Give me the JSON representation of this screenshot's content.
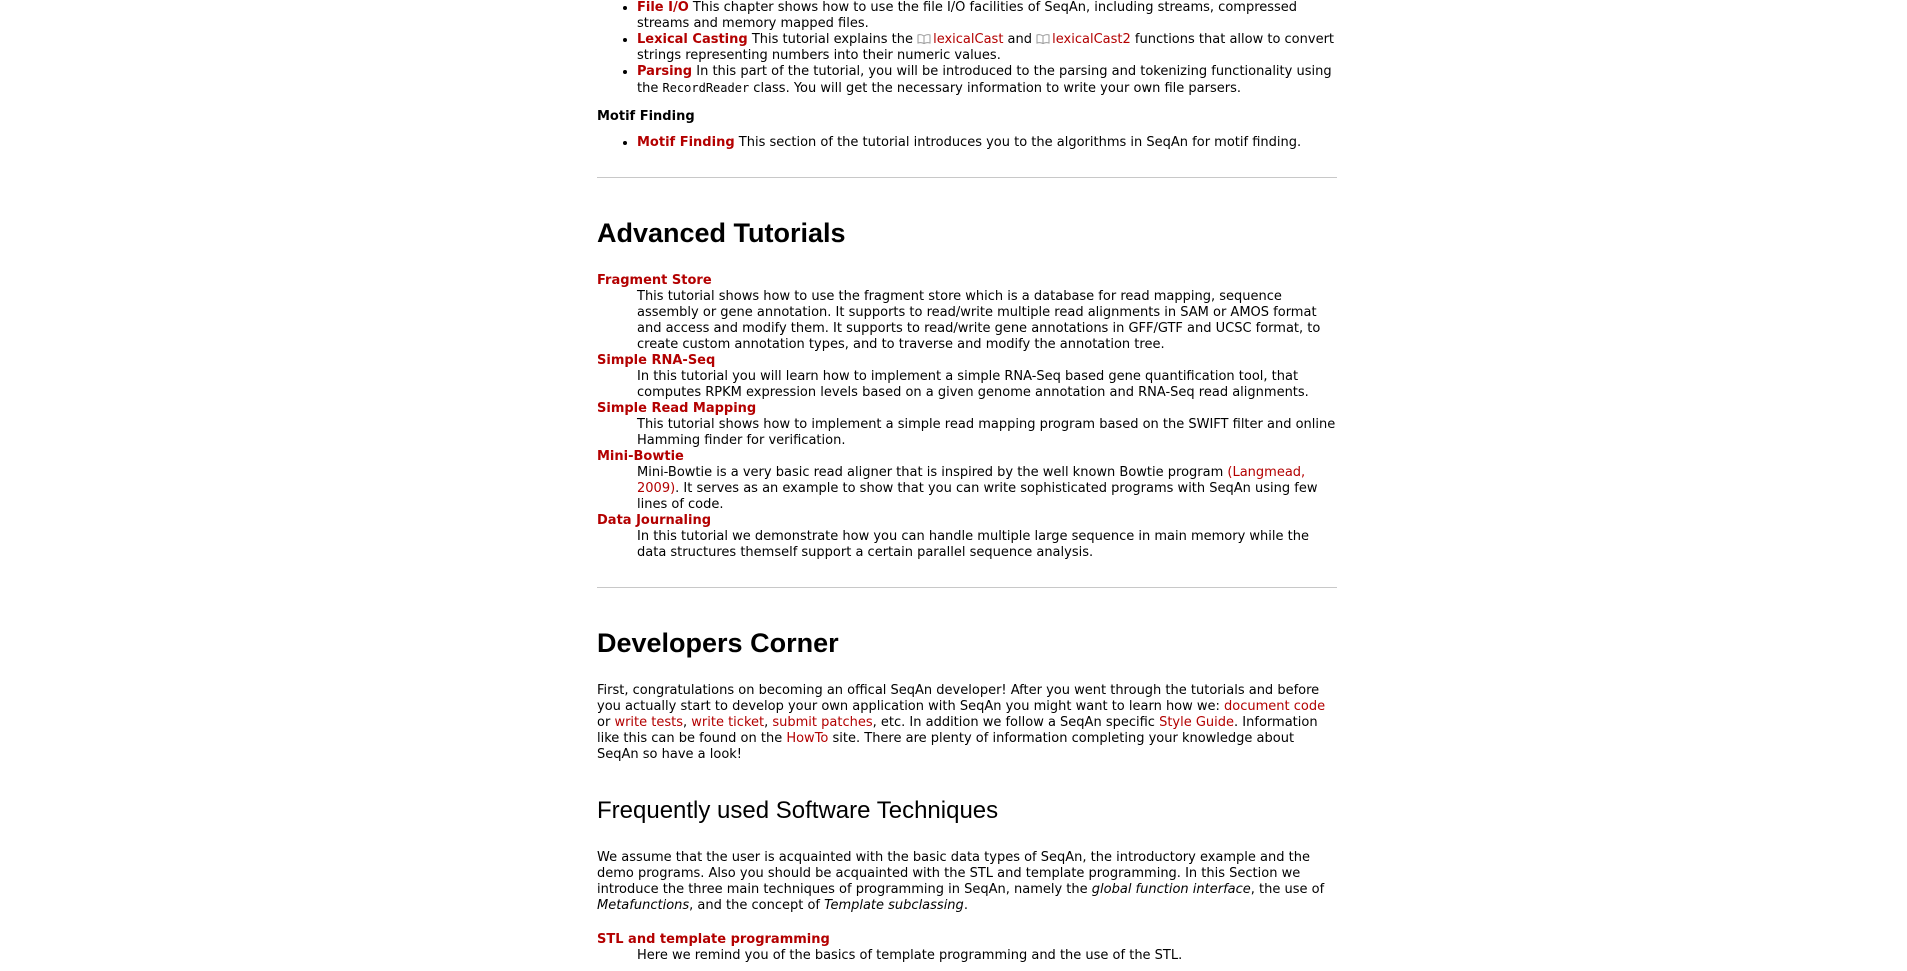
{
  "intro_list": [
    {
      "title": "File I/O",
      "text": " This chapter shows how to use the file I/O facilities of SeqAn, including streams, compressed streams and memory mapped files."
    },
    {
      "title": "Lexical Casting",
      "pre": " This tutorial explains the ",
      "link1": "lexicalCast",
      "mid": " and ",
      "link2": "lexicalCast2",
      "post": " functions that allow to convert strings representing numbers into their numeric values."
    },
    {
      "title": "Parsing",
      "pre": " In this part of the tutorial, you will be introduced to the parsing and tokenizing functionality using the ",
      "code": "RecordReader",
      "post": " class. You will get the necessary information to write your own file parsers."
    }
  ],
  "motif": {
    "heading": "Motif Finding",
    "item_title": "Motif Finding",
    "item_text": " This section of the tutorial introduces you to the algorithms in SeqAn for motif finding."
  },
  "advanced": {
    "heading": "Advanced Tutorials",
    "items": [
      {
        "title": "Fragment Store",
        "text": "This tutorial shows how to use the fragment store which is a database for read mapping, sequence assembly or gene annotation. It supports to read/write multiple read alignments in SAM or AMOS format and access and modify them. It supports to read/write gene annotations in GFF/GTF and UCSC format, to create custom annotation types, and to traverse and modify the annotation tree."
      },
      {
        "title": "Simple RNA-Seq",
        "text": "In this tutorial you will learn how to implement a simple RNA-Seq based gene quantification tool, that computes RPKM expression levels based on a given genome annotation and RNA-Seq read alignments."
      },
      {
        "title": "Simple Read Mapping",
        "text": "This tutorial shows how to implement a simple read mapping program based on the SWIFT filter and online Hamming finder for verification."
      },
      {
        "title": "Mini-Bowtie",
        "pre": "Mini-Bowtie is a very basic read aligner that is inspired by the well known Bowtie program ",
        "cite": "(Langmead, 2009)",
        "post": ". It serves as an example to show that you can write sophisticated programs with SeqAn using few lines of code."
      },
      {
        "title": "Data Journaling",
        "text": "In this tutorial we demonstrate how you can handle multiple large sequence in main memory while the data structures themself support a certain parallel sequence analysis."
      }
    ]
  },
  "developers": {
    "heading": "Developers Corner",
    "p1": "First, congratulations on becoming an offical SeqAn developer! After you went through the tutorials and before you actually start to develop your own application with SeqAn you might want to learn how we: ",
    "link_doc": "document code",
    "t_or": " or ",
    "link_tests": "write tests",
    "t_comma1": ", ",
    "link_ticket": "write ticket",
    "t_comma2": ", ",
    "link_patches": "submit patches",
    "t_etc": ", etc. In addition we follow a SeqAn specific ",
    "link_style": "Style Guide",
    "t_info": ". Information like this can be found on the ",
    "link_howto": "HowTo",
    "t_end": " site. There are plenty of information completing your knowledge about SeqAn so have a look!"
  },
  "techniques": {
    "heading": "Frequently used Software Techniques",
    "p_pre": "We assume that the user is acquainted with the basic data types of SeqAn, the introductory example and the demo programs. Also you should be acquainted with the STL and template programming. In this Section we introduce the three main techniques of programming in SeqAn, namely the ",
    "em1": "global function interface",
    "p_mid1": ", the use of ",
    "em2": "Metafunctions",
    "p_mid2": ", and the concept of ",
    "em3": "Template subclassing",
    "p_end": ".",
    "item_title": "STL and template programming",
    "item_text": "Here we remind you of the basics of template programming and the use of the STL."
  },
  "colors": {
    "link": "#b30000",
    "rule": "#c8c8c8"
  }
}
